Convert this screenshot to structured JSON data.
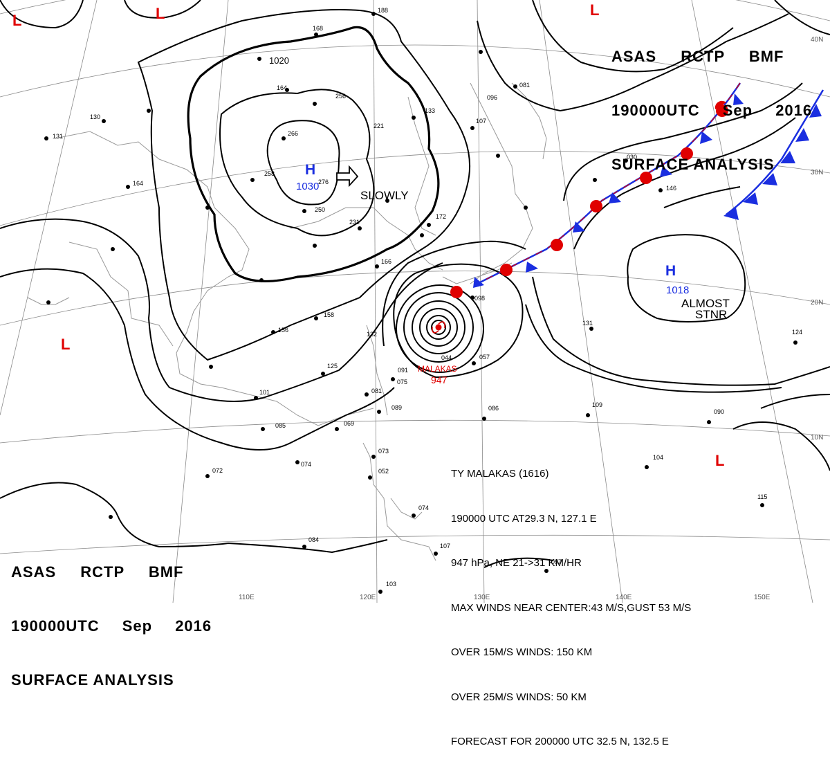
{
  "header": {
    "line1": "ASAS RCTP BMF",
    "line2": "190000UTC Sep 2016",
    "line3": "SURFACE ANALYSIS"
  },
  "systems": {
    "high_west": {
      "symbol": "H",
      "pressure": "1030",
      "motion": "SLOWLY"
    },
    "high_east": {
      "symbol": "H",
      "pressure": "1018",
      "motion_line1": "ALMOST",
      "motion_line2": "STNR"
    },
    "typhoon": {
      "name": "MALAKAS",
      "pressure": "947"
    },
    "lows": [
      "L",
      "L",
      "L",
      "L",
      "L"
    ]
  },
  "isobar_label": "1020",
  "latitude_labels": [
    "40N",
    "30N",
    "20N",
    "10N"
  ],
  "longitude_labels": [
    "110E",
    "120E",
    "130E",
    "140E",
    "150E"
  ],
  "typhoon_info": {
    "line1": "TY MALAKAS (1616)",
    "line2": "190000 UTC AT29.3 N, 127.1 E",
    "line3": "947 hPa, NE 21->31 KM/HR",
    "line4": "MAX WINDS NEAR CENTER:43 M/S,GUST 53 M/S",
    "line5": "OVER 15M/S WINDS: 150 KM",
    "line6": "OVER 25M/S WINDS: 50 KM",
    "line7": "FORECAST FOR 200000 UTC 32.5 N, 132.5 E"
  },
  "colors": {
    "isobar": "#000000",
    "high": "#1a2ee0",
    "low": "#e00000",
    "typhoon": "#e00000",
    "cold_front": "#1a2ee0",
    "warm_front": "#e00000",
    "coast": "#9a9a9a",
    "grid": "#7a7a7a"
  },
  "stations": [
    "188",
    "168",
    "256",
    "221",
    "266",
    "258",
    "276",
    "250",
    "231",
    "133",
    "107",
    "096",
    "081",
    "164",
    "130",
    "131",
    "164",
    "172",
    "166",
    "158",
    "156",
    "132",
    "125",
    "101",
    "085",
    "069",
    "074",
    "072",
    "086",
    "109",
    "090",
    "131",
    "124",
    "115",
    "104",
    "097",
    "084",
    "103",
    "107",
    "073",
    "052",
    "074",
    "091",
    "075",
    "081",
    "089",
    "044",
    "057",
    "146",
    "030",
    "098"
  ]
}
